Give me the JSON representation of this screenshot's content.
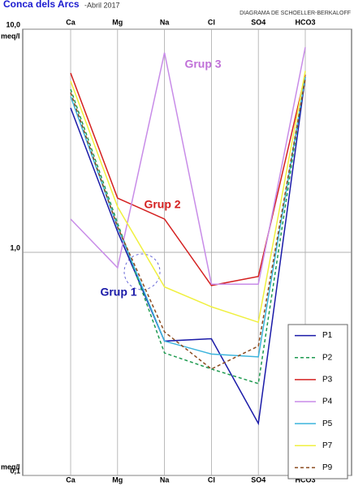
{
  "chart_data": {
    "type": "line",
    "title": "Conca dels Arcs",
    "subtitle": "-Abril 2017",
    "diagram_name": "DIAGRAMA DE SCHOELLER-BERKALOFF",
    "y_label": "meq/l",
    "log_scale": true,
    "categories": [
      "Ca",
      "Mg",
      "Na",
      "Cl",
      "SO4",
      "HCO3"
    ],
    "ylim": [
      0.1,
      10
    ],
    "yticks": [
      {
        "value": 10,
        "label": "10,0"
      },
      {
        "value": 1,
        "label": "1,0"
      },
      {
        "value": 0.1,
        "label": "0,1"
      }
    ],
    "grid": true,
    "legend": "lower right",
    "series": [
      {
        "name": "P1",
        "color": "#1a1aa8",
        "dashed": false,
        "values": [
          4.44,
          1.24,
          0.4,
          0.41,
          0.171,
          6.1
        ]
      },
      {
        "name": "P2",
        "color": "#1e9a50",
        "dashed": true,
        "values": [
          5.38,
          1.35,
          0.354,
          0.3,
          0.258,
          6.25
        ]
      },
      {
        "name": "P3",
        "color": "#d42020",
        "dashed": false,
        "values": [
          6.36,
          1.75,
          1.41,
          0.71,
          0.78,
          6.25
        ]
      },
      {
        "name": "P4",
        "color": "#c88ce8",
        "dashed": false,
        "values": [
          1.41,
          0.853,
          7.85,
          0.72,
          0.72,
          8.3
        ]
      },
      {
        "name": "P5",
        "color": "#3cb4dc",
        "dashed": false,
        "values": [
          5.0,
          1.3,
          0.4,
          0.35,
          0.34,
          6.1
        ]
      },
      {
        "name": "P7",
        "color": "#f0f040",
        "dashed": false,
        "values": [
          5.85,
          1.6,
          0.7,
          0.57,
          0.486,
          6.5
        ]
      },
      {
        "name": "P9",
        "color": "#8b4a1e",
        "dashed": true,
        "values": [
          5.2,
          1.3,
          0.44,
          0.3,
          0.38,
          6.0
        ]
      }
    ],
    "annotations": [
      {
        "text": "Grup 3",
        "color": "#c070d8"
      },
      {
        "text": "Grup 2",
        "color": "#d42020"
      },
      {
        "text": "Grup 1",
        "color": "#1a1aa8"
      }
    ]
  }
}
